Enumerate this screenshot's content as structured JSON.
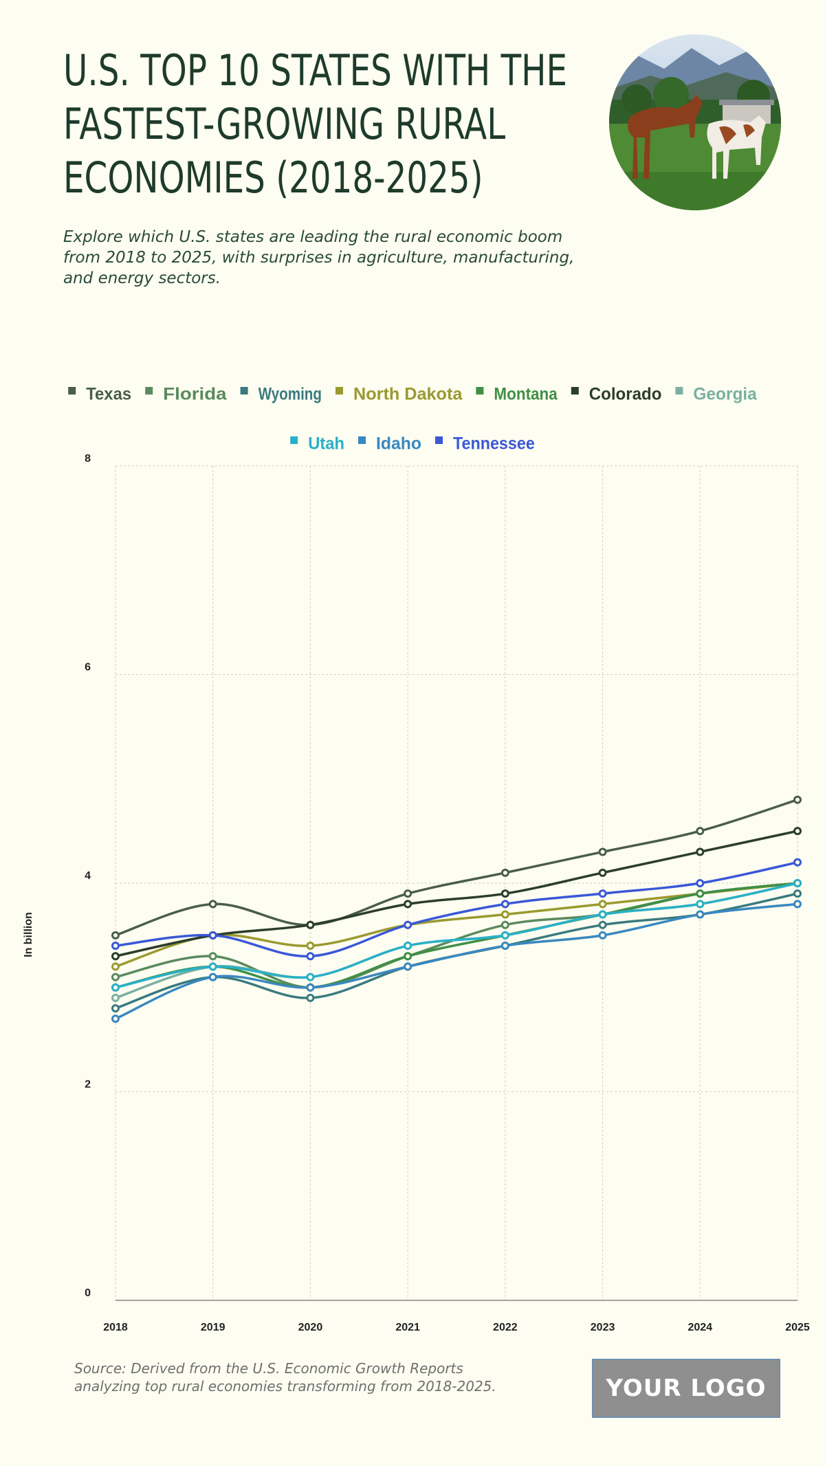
{
  "header": {
    "title_lines": [
      "U.S. TOP 10 STATES WITH THE",
      "FASTEST-GROWING RURAL",
      "ECONOMIES (2018-2025)"
    ],
    "subtitle": "Explore which U.S. states are leading the rural economic boom from 2018 to 2025, with surprises in agriculture, manufacturing, and energy sectors."
  },
  "photo": {
    "icon": "horses-pasture-photo"
  },
  "footer": {
    "source": "Source: Derived from the U.S. Economic Growth Reports analyzing top rural economies transforming from 2018-2025.",
    "logo_text": "YOUR LOGO"
  },
  "chart_data": {
    "type": "line",
    "ylabel": "In billion",
    "xlabel": "",
    "ylim": [
      0,
      8
    ],
    "yticks": [
      0,
      2,
      4,
      6,
      8
    ],
    "x": [
      "2018",
      "2019",
      "2020",
      "2021",
      "2022",
      "2023",
      "2024",
      "2025"
    ],
    "grid": true,
    "legend_position": "top",
    "series": [
      {
        "name": "Texas",
        "color": "#4a5e48",
        "values": [
          3.5,
          3.8,
          3.6,
          3.9,
          4.1,
          4.3,
          4.5,
          4.8
        ]
      },
      {
        "name": "Florida",
        "color": "#5a8a5e",
        "values": [
          3.1,
          3.3,
          3.0,
          3.3,
          3.6,
          3.7,
          3.9,
          4.0
        ]
      },
      {
        "name": "Wyoming",
        "color": "#3a7a80",
        "values": [
          2.8,
          3.1,
          2.9,
          3.2,
          3.4,
          3.6,
          3.7,
          3.9
        ]
      },
      {
        "name": "North Dakota",
        "color": "#9a9a30",
        "values": [
          3.2,
          3.5,
          3.4,
          3.6,
          3.7,
          3.8,
          3.9,
          4.0
        ]
      },
      {
        "name": "Montana",
        "color": "#3f8f45",
        "values": [
          3.0,
          3.2,
          3.0,
          3.3,
          3.5,
          3.7,
          3.9,
          4.0
        ]
      },
      {
        "name": "Colorado",
        "color": "#2c3e2a",
        "values": [
          3.3,
          3.5,
          3.6,
          3.8,
          3.9,
          4.1,
          4.3,
          4.5
        ]
      },
      {
        "name": "Georgia",
        "color": "#7ab0a0",
        "values": [
          2.9,
          3.2,
          3.1,
          3.4,
          3.5,
          3.7,
          3.8,
          4.0
        ]
      },
      {
        "name": "Utah",
        "color": "#2ab0c8",
        "values": [
          3.0,
          3.2,
          3.1,
          3.4,
          3.5,
          3.7,
          3.8,
          4.0
        ]
      },
      {
        "name": "Idaho",
        "color": "#3a88c0",
        "values": [
          2.7,
          3.1,
          3.0,
          3.2,
          3.4,
          3.5,
          3.7,
          3.8
        ]
      },
      {
        "name": "Tennessee",
        "color": "#3a58d8",
        "values": [
          3.4,
          3.5,
          3.3,
          3.6,
          3.8,
          3.9,
          4.0,
          4.2
        ]
      }
    ]
  }
}
